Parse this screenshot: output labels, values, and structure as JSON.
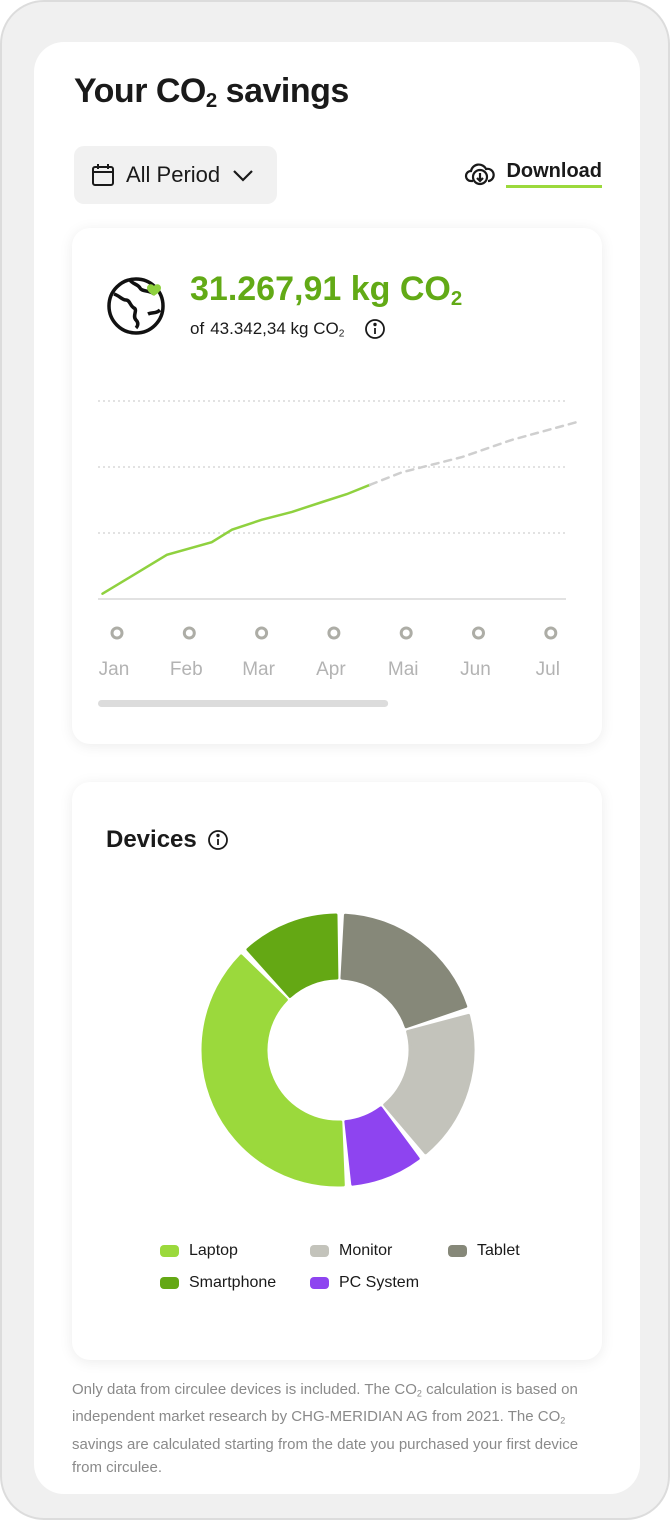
{
  "header": {
    "title": "Your CO",
    "title_sub": "2",
    "title_rest": " savings"
  },
  "toolbar": {
    "period_label": "All Period",
    "download_label": "Download"
  },
  "summary": {
    "saved": "31.267,91 kg CO",
    "saved_sub": "2",
    "of_label": "of",
    "total": "43.342,34 kg CO",
    "total_sub": "2"
  },
  "chart_data": [
    {
      "type": "line",
      "categories": [
        "Jan",
        "Feb",
        "Mar",
        "Apr",
        "Mai",
        "Jun",
        "Jul"
      ],
      "grid": true,
      "series": [
        {
          "style": "solid",
          "color": "#8fd13f",
          "points": [
            [
              -0.2,
              0.08
            ],
            [
              0.69,
              0.67
            ],
            [
              1.31,
              0.86
            ],
            [
              1.59,
              1.05
            ],
            [
              2,
              1.2
            ],
            [
              2.42,
              1.32
            ],
            [
              2.84,
              1.47
            ],
            [
              3.18,
              1.59
            ],
            [
              3.5,
              1.73
            ]
          ]
        },
        {
          "style": "dashed",
          "color": "#cfcfcf",
          "points": [
            [
              3.5,
              1.73
            ],
            [
              3.94,
              1.92
            ],
            [
              4.77,
              2.15
            ],
            [
              5.46,
              2.41
            ],
            [
              6.36,
              2.68
            ]
          ]
        }
      ],
      "ylim": [
        0,
        3
      ],
      "scroll_fraction": 0.62
    },
    {
      "type": "pie",
      "title": "Devices",
      "donut": true,
      "labels": [
        "Tablet",
        "Monitor",
        "PC System",
        "Laptop",
        "Smartphone"
      ],
      "values": [
        20,
        19,
        9.5,
        39,
        12.5
      ],
      "colors": [
        "#868879",
        "#c3c3bb",
        "#8e44f0",
        "#9bd93c",
        "#64a814"
      ]
    }
  ],
  "legend": [
    {
      "label": "Laptop",
      "color": "#9bd93c"
    },
    {
      "label": "Monitor",
      "color": "#c3c3bb"
    },
    {
      "label": "Tablet",
      "color": "#868879"
    },
    {
      "label": "Smartphone",
      "color": "#64a814"
    },
    {
      "label": "PC System",
      "color": "#8e44f0"
    }
  ],
  "footer": {
    "text1": "Only data from circulee devices is included. The CO",
    "sub1": "2",
    "text2": " calculation is based on independent market research by CHG-MERIDIAN AG from 2021. The CO",
    "sub2": "2",
    "text3": " savings are calculated starting from the date you purchased your first device from circulee."
  }
}
